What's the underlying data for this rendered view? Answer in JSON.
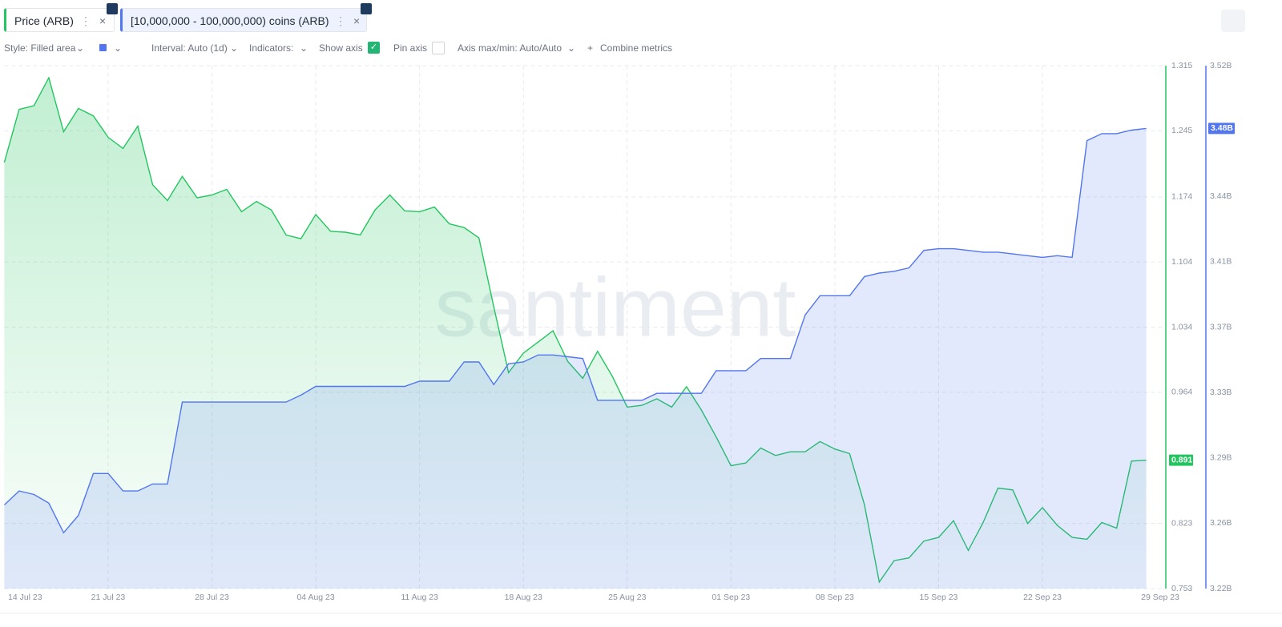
{
  "toolbar": {
    "tabs": [
      "Price (ARB)",
      "[10,000,000 - 100,000,000) coins (ARB)"
    ],
    "style": "Style: Filled area",
    "interval": "Interval: Auto (1d)",
    "indicators": "Indicators:",
    "show_axis": "Show axis",
    "pin_axis": "Pin axis",
    "axis_minmax": "Axis max/min: Auto/Auto",
    "combine": "Combine metrics"
  },
  "watermark": "santiment",
  "chart_data": {
    "type": "line",
    "x": [
      "2023-07-14",
      "2023-07-15",
      "2023-07-16",
      "2023-07-17",
      "2023-07-18",
      "2023-07-19",
      "2023-07-20",
      "2023-07-21",
      "2023-07-22",
      "2023-07-23",
      "2023-07-24",
      "2023-07-25",
      "2023-07-26",
      "2023-07-27",
      "2023-07-28",
      "2023-07-29",
      "2023-07-30",
      "2023-07-31",
      "2023-08-01",
      "2023-08-02",
      "2023-08-03",
      "2023-08-04",
      "2023-08-05",
      "2023-08-06",
      "2023-08-07",
      "2023-08-08",
      "2023-08-09",
      "2023-08-10",
      "2023-08-11",
      "2023-08-12",
      "2023-08-13",
      "2023-08-14",
      "2023-08-15",
      "2023-08-16",
      "2023-08-17",
      "2023-08-18",
      "2023-08-19",
      "2023-08-20",
      "2023-08-21",
      "2023-08-22",
      "2023-08-23",
      "2023-08-24",
      "2023-08-25",
      "2023-08-26",
      "2023-08-27",
      "2023-08-28",
      "2023-08-29",
      "2023-08-30",
      "2023-08-31",
      "2023-09-01",
      "2023-09-02",
      "2023-09-03",
      "2023-09-04",
      "2023-09-05",
      "2023-09-06",
      "2023-09-07",
      "2023-09-08",
      "2023-09-09",
      "2023-09-10",
      "2023-09-11",
      "2023-09-12",
      "2023-09-13",
      "2023-09-14",
      "2023-09-15",
      "2023-09-16",
      "2023-09-17",
      "2023-09-18",
      "2023-09-19",
      "2023-09-20",
      "2023-09-21",
      "2023-09-22",
      "2023-09-23",
      "2023-09-24",
      "2023-09-25",
      "2023-09-26",
      "2023-09-27",
      "2023-09-28",
      "2023-09-29"
    ],
    "xlim": [
      "2023-07-14",
      "2023-09-29"
    ],
    "xticks": [
      {
        "value": "2023-07-14",
        "label": "14 Jul 23"
      },
      {
        "value": "2023-07-21",
        "label": "21 Jul 23"
      },
      {
        "value": "2023-07-28",
        "label": "28 Jul 23"
      },
      {
        "value": "2023-08-04",
        "label": "04 Aug 23"
      },
      {
        "value": "2023-08-11",
        "label": "11 Aug 23"
      },
      {
        "value": "2023-08-18",
        "label": "18 Aug 23"
      },
      {
        "value": "2023-08-25",
        "label": "25 Aug 23"
      },
      {
        "value": "2023-09-01",
        "label": "01 Sep 23"
      },
      {
        "value": "2023-09-08",
        "label": "08 Sep 23"
      },
      {
        "value": "2023-09-15",
        "label": "15 Sep 23"
      },
      {
        "value": "2023-09-22",
        "label": "22 Sep 23"
      },
      {
        "value": "2023-09-29",
        "label": "29 Sep 23"
      }
    ],
    "ylim": [
      0.753,
      1.315
    ],
    "yticks": [
      0.753,
      0.823,
      0.964,
      1.034,
      1.104,
      1.174,
      1.245,
      1.315
    ],
    "y2lim": [
      3220000000,
      3520000000
    ],
    "y2ticks": [
      {
        "value": 3220000000,
        "label": "3.22B"
      },
      {
        "value": 3257500000,
        "label": "3.26B"
      },
      {
        "value": 3295000000,
        "label": "3.29B"
      },
      {
        "value": 3332500000,
        "label": "3.33B"
      },
      {
        "value": 3370000000,
        "label": "3.37B"
      },
      {
        "value": 3407500000,
        "label": "3.41B"
      },
      {
        "value": 3445000000,
        "label": "3.44B"
      },
      {
        "value": 3482500000,
        "label": "3.48B"
      },
      {
        "value": 3520000000,
        "label": "3.52B"
      }
    ],
    "grid": true,
    "series": [
      {
        "name": "Price (ARB)",
        "color": "#22c55e",
        "values": [
          1.211,
          1.268,
          1.272,
          1.302,
          1.244,
          1.269,
          1.261,
          1.238,
          1.226,
          1.25,
          1.187,
          1.17,
          1.196,
          1.173,
          1.176,
          1.182,
          1.158,
          1.169,
          1.16,
          1.133,
          1.129,
          1.155,
          1.137,
          1.136,
          1.133,
          1.16,
          1.176,
          1.159,
          1.158,
          1.163,
          1.145,
          1.141,
          1.13,
          1.056,
          0.985,
          1.006,
          1.018,
          1.03,
          0.997,
          0.979,
          1.008,
          0.981,
          0.948,
          0.95,
          0.957,
          0.948,
          0.97,
          0.945,
          0.916,
          0.885,
          0.888,
          0.904,
          0.896,
          0.9,
          0.9,
          0.911,
          0.903,
          0.898,
          0.843,
          0.76,
          0.783,
          0.786,
          0.804,
          0.808,
          0.826,
          0.794,
          0.824,
          0.861,
          0.859,
          0.823,
          0.84,
          0.821,
          0.808,
          0.806,
          0.824,
          0.818,
          0.89,
          0.891
        ]
      },
      {
        "name": "[10,000,000 - 100,000,000) coins (ARB)",
        "color": "#5275f0",
        "axis": "y2",
        "values": [
          3268000000,
          3276000000,
          3274000000,
          3269000000,
          3252000000,
          3262000000,
          3286000000,
          3286000000,
          3276000000,
          3276000000,
          3280000000,
          3280000000,
          3327000000,
          3327000000,
          3327000000,
          3327000000,
          3327000000,
          3327000000,
          3327000000,
          3327000000,
          3331000000,
          3336000000,
          3336000000,
          3336000000,
          3336000000,
          3336000000,
          3336000000,
          3336000000,
          3339000000,
          3339000000,
          3339000000,
          3350000000,
          3350000000,
          3337000000,
          3349000000,
          3350000000,
          3354000000,
          3354000000,
          3353000000,
          3352000000,
          3328000000,
          3328000000,
          3328000000,
          3328000000,
          3332000000,
          3332000000,
          3332000000,
          3332000000,
          3345000000,
          3345000000,
          3345000000,
          3352000000,
          3352000000,
          3352000000,
          3377000000,
          3388000000,
          3388000000,
          3388000000,
          3399000000,
          3401000000,
          3402000000,
          3404000000,
          3414000000,
          3415000000,
          3415000000,
          3414000000,
          3413000000,
          3413000000,
          3412000000,
          3411000000,
          3410000000,
          3411000000,
          3410000000,
          3477000000,
          3481000000,
          3481000000,
          3483000000,
          3484000000
        ],
        "value_labels": [
          null,
          null,
          null,
          null,
          null,
          null,
          null,
          null,
          null,
          null,
          null,
          null,
          null,
          null,
          null,
          null,
          null,
          null,
          null,
          null,
          null,
          null,
          null,
          null,
          null,
          null,
          null,
          null,
          null,
          null,
          null,
          null,
          null,
          null,
          null,
          null,
          null,
          null,
          null,
          null,
          null,
          null,
          null,
          null,
          null,
          null,
          null,
          null,
          null,
          null,
          null,
          null,
          null,
          null,
          null,
          null,
          null,
          null,
          null,
          null,
          null,
          null,
          null,
          null,
          null,
          null,
          null,
          null,
          null,
          null,
          null,
          null,
          null,
          null,
          null,
          null,
          null,
          "3.48B"
        ]
      }
    ]
  }
}
